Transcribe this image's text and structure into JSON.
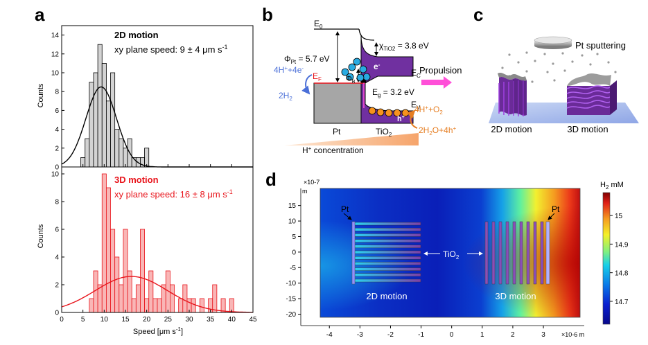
{
  "panels": {
    "a": "a",
    "b": "b",
    "c": "c",
    "d": "d"
  },
  "panel_a": {
    "top_title": "2D motion",
    "top_speed": "xy plane speed: 9 ± 4 μm s",
    "bottom_title": "3D motion",
    "bottom_speed": "xy plane speed: 16 ± 8 μm s",
    "sup": "-1",
    "ylabel": "Counts",
    "xlabel": "Speed [μm s",
    "xlabel_end": "]",
    "top_color": "#000000",
    "bottom_color": "#e8141b"
  },
  "chart_data": [
    {
      "type": "bar",
      "title": "2D motion",
      "xlabel": "Speed [μm s-1]",
      "ylabel": "Counts",
      "xlim": [
        0,
        45
      ],
      "ylim": [
        0,
        15
      ],
      "bin_width": 1,
      "bins": [
        5,
        6,
        7,
        8,
        9,
        10,
        11,
        12,
        13,
        14,
        15,
        16,
        17,
        18,
        19,
        20
      ],
      "values": [
        1,
        3,
        9,
        10,
        13,
        11,
        7,
        10,
        4,
        3,
        2,
        3,
        1,
        1,
        1,
        2
      ],
      "fit": {
        "type": "gaussian",
        "mean": 9.3,
        "sd": 3.6,
        "peak": 8.5
      },
      "xticks": [
        0,
        5,
        10,
        15,
        20,
        25,
        30,
        35,
        40,
        45
      ],
      "yticks": [
        0,
        2,
        4,
        6,
        8,
        10,
        12,
        14
      ]
    },
    {
      "type": "bar",
      "title": "3D motion",
      "xlabel": "Speed [μm s-1]",
      "ylabel": "Counts",
      "xlim": [
        0,
        45
      ],
      "ylim": [
        0,
        10.5
      ],
      "bin_width": 1,
      "bins": [
        7,
        8,
        9,
        10,
        11,
        12,
        13,
        14,
        15,
        16,
        17,
        18,
        19,
        20,
        21,
        22,
        23,
        24,
        25,
        26,
        28,
        29,
        30,
        31,
        33,
        35,
        36,
        38,
        40
      ],
      "values": [
        1,
        3,
        2,
        10,
        9,
        6,
        4,
        2,
        6,
        3,
        1,
        2,
        6,
        1,
        3,
        1,
        1,
        2,
        3,
        2,
        1,
        2,
        1,
        1,
        1,
        1,
        2,
        1,
        1
      ],
      "fit": {
        "type": "gaussian",
        "mean": 16.4,
        "sd": 8.5,
        "peak": 2.6
      },
      "xticks": [
        0,
        5,
        10,
        15,
        20,
        25,
        30,
        35,
        40,
        45
      ],
      "yticks": [
        0,
        2,
        4,
        6,
        8,
        10
      ]
    },
    {
      "type": "heatmap",
      "title": "H2 mM",
      "colorbar_ticks": [
        14.7,
        14.8,
        14.9,
        15
      ],
      "colorbar_range": [
        14.62,
        15.08
      ],
      "x_exponent": "×10-6 m",
      "y_exponent": "×10-7 m",
      "xticks": [
        -4,
        -3,
        -2,
        -1,
        0,
        1,
        2,
        3
      ],
      "yticks": [
        15,
        10,
        5,
        0,
        -5,
        -10,
        -15,
        -20
      ],
      "xlim": [
        -4.3,
        4.2
      ],
      "ylim": [
        -21,
        20.5
      ]
    }
  ],
  "panel_b": {
    "e0": "E",
    "e0_sub": "0",
    "phi_pt": "Φ",
    "phi_pt_sub": "Pt",
    "phi_pt_val": " = 5.7 eV",
    "chi": "χ",
    "chi_sub": "TiO2",
    "chi_val": " = 3.8 eV",
    "ef": "E",
    "ef_sub": "F",
    "phib": "Φ",
    "phib_sub": "B",
    "ec": "E",
    "ec_sub": "C",
    "eg": "E",
    "eg_sub": "g",
    "eg_val": " = 3.2 eV",
    "ev": "E",
    "ev_sub": "V",
    "reaction_left_top": "4H",
    "reaction_left_top_rest": "+4e",
    "reaction_left_bottom": "2H",
    "reaction_left_bottom_sub": "2",
    "reaction_right_top": "4H",
    "reaction_right_top_rest": "+O",
    "reaction_right_top_sub": "2",
    "reaction_right_bottom": "2H",
    "reaction_right_bottom_sub": "2",
    "reaction_right_bottom_rest": "O+4h",
    "electron": "e",
    "hole": "h",
    "propulsion": "Propulsion",
    "pt": "Pt",
    "tio2": "TiO",
    "tio2_sub": "2",
    "concentration": "H",
    "concentration_rest": " concentration",
    "colors": {
      "electron": "#29abe2",
      "hole": "#f7931e",
      "tio2": "#7030a0",
      "pt": "#a6a6a6",
      "propulsion": "#ff4fd8",
      "blue": "#4a6fd8",
      "orange": "#e67e22",
      "ef": "#e8141b"
    }
  },
  "panel_c": {
    "sputter": "Pt sputtering",
    "label_2d": "2D motion",
    "label_3d": "3D motion"
  },
  "panel_d": {
    "pt_left": "Pt",
    "pt_right": "Pt",
    "tio2": "TiO",
    "tio2_sub": "2",
    "label_2d": "2D motion",
    "label_3d": "3D motion",
    "colorbar_title": "H",
    "colorbar_title_sub": "2",
    "colorbar_title_rest": " mM",
    "m_left": "m",
    "m_right": "m"
  }
}
